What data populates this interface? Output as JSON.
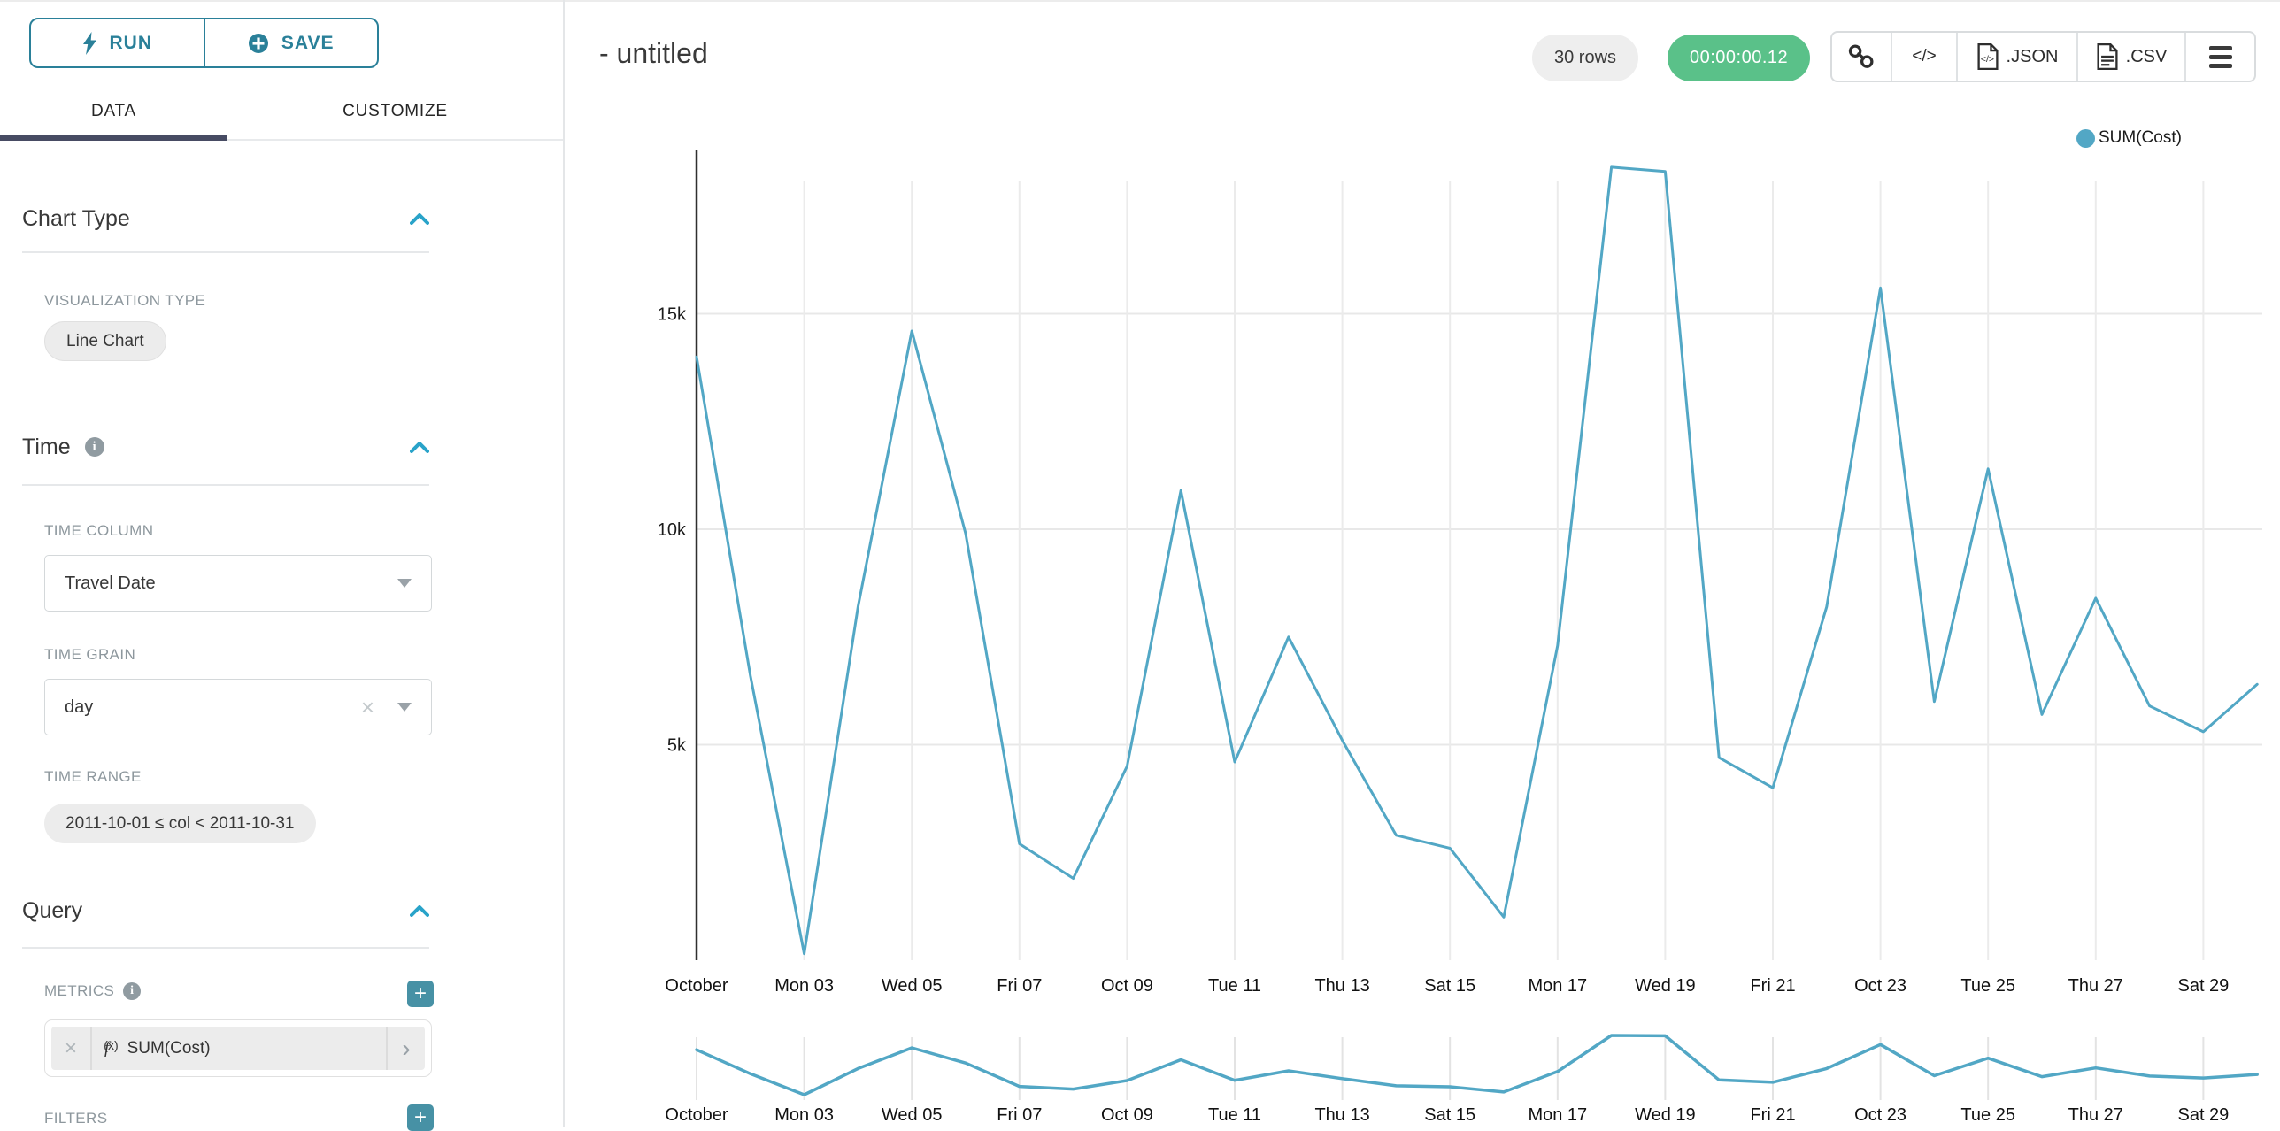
{
  "toolbar": {
    "run_label": "RUN",
    "save_label": "SAVE"
  },
  "tabs": {
    "data": "DATA",
    "customize": "CUSTOMIZE"
  },
  "panel": {
    "chart_type": {
      "title": "Chart Type",
      "viz_label": "VISUALIZATION TYPE",
      "viz_value": "Line Chart"
    },
    "time": {
      "title": "Time",
      "col_label": "TIME COLUMN",
      "col_value": "Travel Date",
      "grain_label": "TIME GRAIN",
      "grain_value": "day",
      "range_label": "TIME RANGE",
      "range_value": "2011-10-01 ≤ col < 2011-10-31"
    },
    "query": {
      "title": "Query",
      "metrics_label": "METRICS",
      "metric_fn_f": "f",
      "metric_fn_args": "(x)",
      "metric_value": "SUM(Cost)",
      "filters_label": "FILTERS"
    }
  },
  "header": {
    "title": "- untitled",
    "row_count": "30 rows",
    "elapsed": "00:00:00.12",
    "code_label": "</>",
    "json_label": ".JSON",
    "csv_label": ".CSV"
  },
  "legend": {
    "label": "SUM(Cost)"
  },
  "icons": {
    "add": "+",
    "clear": "×",
    "remove": "×",
    "chevron_right": "›",
    "info": "i"
  },
  "colors": {
    "accent_teal": "#2a8099",
    "plus_button": "#4791a5",
    "tab_underline": "#474b63",
    "timer_green": "#5ac189",
    "line_blue": "#52a7c5",
    "gridline": "#e8e8e8",
    "axis_line": "#2f2f2f",
    "label_gray": "#8d979d"
  },
  "chart_data": {
    "type": "line",
    "title": "",
    "xlabel": "",
    "ylabel": "",
    "grid": true,
    "legend": {
      "position": "top-right",
      "entries": [
        "SUM(Cost)"
      ]
    },
    "x": [
      "2011-10-01",
      "2011-10-02",
      "2011-10-03",
      "2011-10-04",
      "2011-10-05",
      "2011-10-06",
      "2011-10-07",
      "2011-10-08",
      "2011-10-09",
      "2011-10-10",
      "2011-10-11",
      "2011-10-12",
      "2011-10-13",
      "2011-10-14",
      "2011-10-15",
      "2011-10-16",
      "2011-10-17",
      "2011-10-18",
      "2011-10-19",
      "2011-10-20",
      "2011-10-21",
      "2011-10-22",
      "2011-10-23",
      "2011-10-24",
      "2011-10-25",
      "2011-10-26",
      "2011-10-27",
      "2011-10-28",
      "2011-10-29",
      "2011-10-30"
    ],
    "series": [
      {
        "name": "SUM(Cost)",
        "color": "#52a7c5",
        "values": [
          14000,
          6600,
          150,
          8200,
          14600,
          9900,
          2700,
          1900,
          4500,
          10900,
          4600,
          7500,
          5100,
          2900,
          2600,
          1000,
          7300,
          18400,
          18300,
          4700,
          4000,
          8200,
          15600,
          6000,
          11400,
          5700,
          8400,
          5900,
          5300,
          6400
        ]
      }
    ],
    "x_tick_labels": [
      "October",
      "Mon 03",
      "Wed 05",
      "Fri 07",
      "Oct 09",
      "Tue 11",
      "Thu 13",
      "Sat 15",
      "Mon 17",
      "Wed 19",
      "Fri 21",
      "Oct 23",
      "Tue 25",
      "Thu 27",
      "Sat 29"
    ],
    "y_ticks": [
      {
        "label": "5k",
        "value": 5000
      },
      {
        "label": "10k",
        "value": 10000
      },
      {
        "label": "15k",
        "value": 15000
      }
    ],
    "ylim": [
      0,
      18600
    ],
    "has_mini_context_chart": true
  }
}
